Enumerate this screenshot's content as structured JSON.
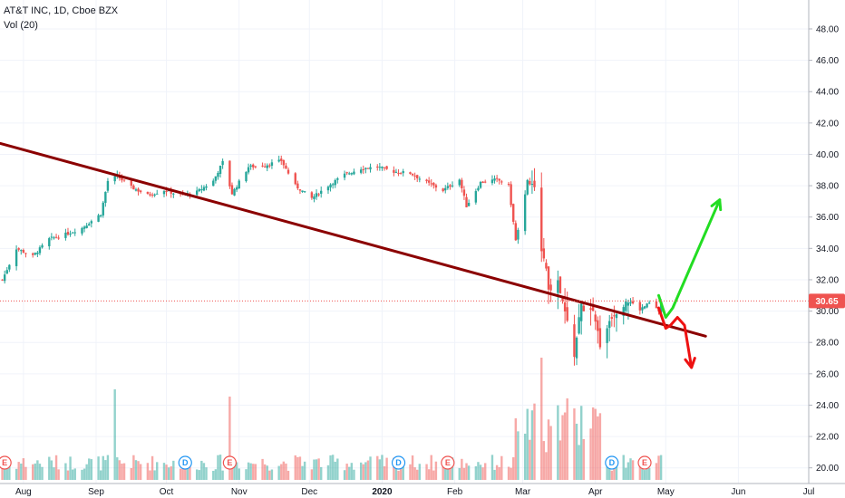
{
  "legend": {
    "symbol_line": "AT&T INC, 1D, Cboe BZX",
    "indicator": "Vol (20)"
  },
  "last_price_label": "30.65",
  "colors": {
    "up": "#26a69a",
    "down": "#ef5350",
    "trendline": "#8b0000",
    "bull_arrow": "#22dd22",
    "bear_arrow": "#ee1111",
    "price_line": "#ef5350"
  },
  "chart_data": {
    "type": "candlestick",
    "title": "AT&T INC, 1D, Cboe BZX",
    "indicator": "Vol (20)",
    "y_axis": {
      "ticks": [
        "20.00",
        "22.00",
        "24.00",
        "26.00",
        "28.00",
        "30.00",
        "32.00",
        "34.00",
        "36.00",
        "38.00",
        "40.00",
        "42.00",
        "44.00",
        "46.00",
        "48.00"
      ],
      "tick_values": [
        20,
        22,
        24,
        26,
        28,
        30,
        32,
        34,
        36,
        38,
        40,
        42,
        44,
        46,
        48
      ],
      "range": [
        19,
        49.5
      ],
      "position": "right"
    },
    "x_axis": {
      "ticks": [
        "Aug",
        "Sep",
        "Oct",
        "Nov",
        "Dec",
        "2020",
        "Feb",
        "Mar",
        "Apr",
        "May",
        "Jun",
        "Jul"
      ],
      "tick_dates": [
        "2019-08-01",
        "2019-09-01",
        "2019-10-01",
        "2019-11-01",
        "2019-12-01",
        "2020-01-01",
        "2020-02-01",
        "2020-03-01",
        "2020-04-01",
        "2020-05-01",
        "2020-06-01",
        "2020-07-01"
      ],
      "range": [
        "2019-07-22",
        "2020-07-01"
      ]
    },
    "last_price": 30.65,
    "grid": true,
    "price_anchors": [
      [
        "2019-07-23",
        32.0
      ],
      [
        "2019-07-29",
        34.0
      ],
      [
        "2019-08-05",
        33.5
      ],
      [
        "2019-08-12",
        34.6
      ],
      [
        "2019-08-19",
        34.9
      ],
      [
        "2019-08-26",
        35.3
      ],
      [
        "2019-09-03",
        36.2
      ],
      [
        "2019-09-06",
        38.3
      ],
      [
        "2019-09-10",
        38.6
      ],
      [
        "2019-09-16",
        37.9
      ],
      [
        "2019-09-23",
        37.4
      ],
      [
        "2019-09-30",
        37.7
      ],
      [
        "2019-10-07",
        37.4
      ],
      [
        "2019-10-14",
        37.6
      ],
      [
        "2019-10-21",
        38.3
      ],
      [
        "2019-10-25",
        39.5
      ],
      [
        "2019-10-29",
        37.5
      ],
      [
        "2019-11-05",
        39.2
      ],
      [
        "2019-11-12",
        39.3
      ],
      [
        "2019-11-19",
        39.6
      ],
      [
        "2019-11-25",
        38.0
      ],
      [
        "2019-12-02",
        37.2
      ],
      [
        "2019-12-09",
        38.0
      ],
      [
        "2019-12-16",
        38.7
      ],
      [
        "2019-12-23",
        39.1
      ],
      [
        "2019-12-30",
        39.2
      ],
      [
        "2020-01-06",
        38.9
      ],
      [
        "2020-01-13",
        38.8
      ],
      [
        "2020-01-20",
        38.2
      ],
      [
        "2020-01-27",
        37.7
      ],
      [
        "2020-02-03",
        38.4
      ],
      [
        "2020-02-06",
        36.7
      ],
      [
        "2020-02-12",
        38.2
      ],
      [
        "2020-02-19",
        38.4
      ],
      [
        "2020-02-24",
        38.0
      ],
      [
        "2020-02-27",
        34.5
      ],
      [
        "2020-03-03",
        38.3
      ],
      [
        "2020-03-06",
        37.6
      ],
      [
        "2020-03-09",
        34.2
      ],
      [
        "2020-03-12",
        31.5
      ],
      [
        "2020-03-16",
        31.7
      ],
      [
        "2020-03-20",
        29.2
      ],
      [
        "2020-03-23",
        27.3
      ],
      [
        "2020-03-26",
        30.4
      ],
      [
        "2020-03-31",
        29.7
      ],
      [
        "2020-04-03",
        28.0
      ],
      [
        "2020-04-08",
        29.8
      ],
      [
        "2020-04-14",
        30.8
      ],
      [
        "2020-04-20",
        30.1
      ],
      [
        "2020-04-24",
        30.5
      ],
      [
        "2020-04-28",
        30.0
      ],
      [
        "2020-04-29",
        30.65
      ]
    ],
    "volume_note": "Vol (20) histogram below price series; spikes around 2019-09-09 and 2020-03-09"
  },
  "markers": [
    {
      "kind": "E",
      "date": "2019-07-24"
    },
    {
      "kind": "D",
      "date": "2019-10-09"
    },
    {
      "kind": "E",
      "date": "2019-10-28"
    },
    {
      "kind": "D",
      "date": "2020-01-08"
    },
    {
      "kind": "E",
      "date": "2020-01-29"
    },
    {
      "kind": "D",
      "date": "2020-04-08"
    },
    {
      "kind": "E",
      "date": "2020-04-22"
    }
  ],
  "drawings": {
    "trendline": {
      "from": [
        "2019-07-22",
        40.7
      ],
      "to": [
        "2020-05-18",
        28.4
      ]
    },
    "bullish_path": [
      [
        "2020-04-28",
        31.0
      ],
      [
        "2020-05-01",
        29.6
      ],
      [
        "2020-05-04",
        30.2
      ],
      [
        "2020-05-24",
        37.1
      ]
    ],
    "bearish_path": [
      [
        "2020-04-28",
        30.2
      ],
      [
        "2020-05-01",
        28.9
      ],
      [
        "2020-05-03",
        29.1
      ],
      [
        "2020-05-06",
        29.6
      ],
      [
        "2020-05-09",
        29.1
      ],
      [
        "2020-05-12",
        26.4
      ]
    ]
  }
}
